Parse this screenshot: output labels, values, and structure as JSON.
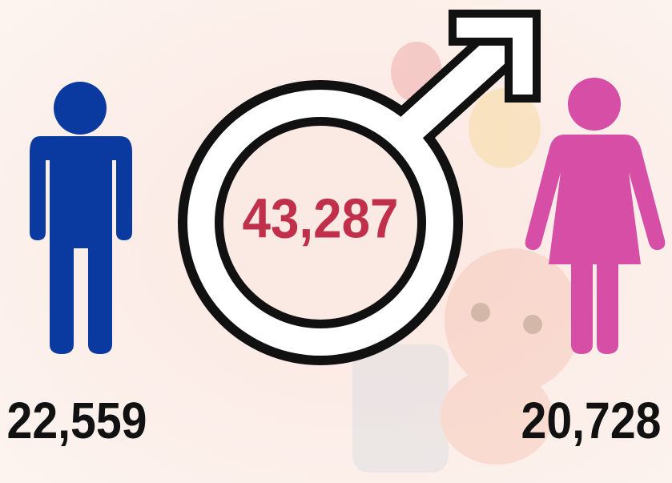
{
  "total": "43,287",
  "male": "22,559",
  "female": "20,728"
}
